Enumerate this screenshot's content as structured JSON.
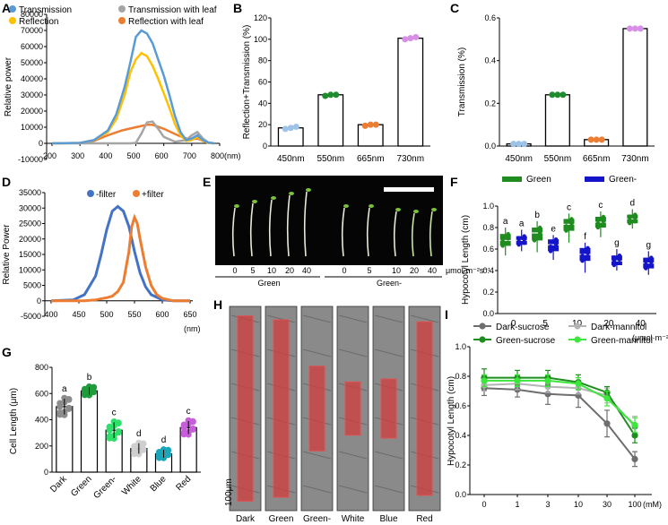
{
  "panel_labels": {
    "a": "A",
    "b": "B",
    "c": "C",
    "d": "D",
    "e": "E",
    "f": "F",
    "g": "G",
    "h": "H",
    "i": "I"
  },
  "colors": {
    "transmission": "#5b9bd5",
    "transmission_leaf": "#a5a5a5",
    "reflection": "#ffc000",
    "reflection_leaf": "#ed7d31",
    "blue_pt": "#9dc3e6",
    "green_pt": "#1e8c2e",
    "orange_pt": "#ed7d31",
    "violet_pt": "#d78ee6",
    "minus_filter": "#4472c4",
    "plus_filter": "#ed7d31",
    "green_box": "#1e8c1e",
    "blue_box": "#1414c8",
    "g_dark": "#8c8c8c",
    "g_green": "#1e9c3c",
    "g_greenminus": "#2ee06a",
    "g_white": "#cfcfcf",
    "g_blue": "#1aa6b8",
    "g_red": "#c65ed9",
    "i_dark_sucrose": "#6e6e6e",
    "i_dark_mannitol": "#b4b4b4",
    "i_green_sucrose": "#1e8c1e",
    "i_green_mannitol": "#3ce63c"
  },
  "chart_data": [
    {
      "panel": "A",
      "type": "line",
      "ylabel": "Relative power",
      "xlabel_unit": "(nm)",
      "xlim": [
        200,
        800
      ],
      "ylim": [
        -10000,
        80000
      ],
      "x_ticks": [
        "200",
        "300",
        "400",
        "500",
        "600",
        "700",
        "800"
      ],
      "y_ticks": [
        "-10000",
        "0",
        "10000",
        "20000",
        "30000",
        "40000",
        "50000",
        "60000",
        "70000",
        "80000"
      ],
      "legend": [
        "Transmission",
        "Transmission with leaf",
        "Reflection",
        "Reflection with leaf"
      ],
      "series": [
        {
          "name": "Transmission",
          "x": [
            200,
            300,
            350,
            400,
            430,
            460,
            480,
            500,
            520,
            540,
            560,
            580,
            600,
            620,
            640,
            660,
            680,
            700,
            720,
            740,
            760,
            780
          ],
          "y": [
            0,
            300,
            2000,
            8000,
            18000,
            35000,
            50000,
            66000,
            70000,
            68000,
            62000,
            52000,
            42000,
            30000,
            17000,
            7000,
            2000,
            3000,
            5000,
            2000,
            500,
            0
          ]
        },
        {
          "name": "Transmission with leaf",
          "x": [
            200,
            400,
            480,
            500,
            520,
            540,
            560,
            580,
            600,
            640,
            680,
            700,
            720,
            740,
            760,
            780
          ],
          "y": [
            0,
            0,
            0,
            300,
            6000,
            13000,
            13500,
            9000,
            4000,
            1000,
            2000,
            5000,
            7000,
            3000,
            500,
            0
          ]
        },
        {
          "name": "Reflection",
          "x": [
            200,
            300,
            350,
            400,
            430,
            460,
            480,
            500,
            520,
            540,
            560,
            580,
            600,
            620,
            640,
            660,
            680,
            700,
            720,
            740,
            760,
            780
          ],
          "y": [
            0,
            300,
            2000,
            7000,
            15000,
            30000,
            44000,
            52000,
            56000,
            54000,
            48000,
            40000,
            31000,
            22000,
            12000,
            5000,
            1500,
            2000,
            4000,
            1500,
            300,
            0
          ]
        },
        {
          "name": "Reflection with leaf",
          "x": [
            200,
            300,
            350,
            400,
            450,
            500,
            540,
            560,
            600,
            650,
            680,
            700,
            720,
            740,
            760,
            780
          ],
          "y": [
            0,
            200,
            1500,
            5000,
            8000,
            10000,
            11500,
            11500,
            9000,
            5000,
            3000,
            2500,
            3000,
            1500,
            300,
            0
          ]
        }
      ]
    },
    {
      "panel": "B",
      "type": "bar",
      "ylabel": "Reflection+Transmission (%)",
      "categories": [
        "450nm",
        "550nm",
        "665nm",
        "730nm"
      ],
      "values": [
        17,
        48,
        20,
        101
      ],
      "points": [
        [
          16,
          17,
          18
        ],
        [
          47,
          48,
          48
        ],
        [
          19,
          20,
          20
        ],
        [
          100,
          101,
          102
        ]
      ],
      "ylim": [
        0,
        120
      ],
      "y_ticks": [
        "0",
        "20",
        "40",
        "60",
        "80",
        "100",
        "120"
      ]
    },
    {
      "panel": "C",
      "type": "bar",
      "ylabel": "Transmission (%)",
      "categories": [
        "450nm",
        "550nm",
        "665nm",
        "730nm"
      ],
      "values": [
        0.01,
        0.24,
        0.03,
        0.55
      ],
      "points": [
        [
          0.01,
          0.01,
          0.01
        ],
        [
          0.24,
          0.24,
          0.24
        ],
        [
          0.03,
          0.03,
          0.03
        ],
        [
          0.55,
          0.55,
          0.55
        ]
      ],
      "ylim": [
        0,
        0.6
      ],
      "y_ticks": [
        "0.0",
        "0.2",
        "0.4",
        "0.6"
      ]
    },
    {
      "panel": "D",
      "type": "line",
      "ylabel": "Relative Power",
      "xlabel_unit": "(nm)",
      "xlim": [
        400,
        650
      ],
      "ylim": [
        -5000,
        35000
      ],
      "x_ticks": [
        "400",
        "450",
        "500",
        "550",
        "600",
        "650"
      ],
      "y_ticks": [
        "-5000",
        "0",
        "5000",
        "10000",
        "15000",
        "20000",
        "25000",
        "30000",
        "35000"
      ],
      "legend": [
        "-filter",
        "+filter"
      ],
      "series": [
        {
          "name": "-filter",
          "x": [
            400,
            440,
            460,
            480,
            490,
            500,
            510,
            520,
            530,
            540,
            550,
            560,
            570,
            580,
            600,
            620,
            650
          ],
          "y": [
            0,
            300,
            2000,
            8000,
            15000,
            23000,
            29000,
            30500,
            29000,
            24000,
            16000,
            9000,
            4500,
            2000,
            300,
            0,
            0
          ]
        },
        {
          "name": "+filter",
          "x": [
            400,
            460,
            480,
            500,
            510,
            520,
            530,
            540,
            545,
            550,
            555,
            560,
            570,
            580,
            590,
            600,
            620,
            650
          ],
          "y": [
            0,
            0,
            300,
            1000,
            1500,
            3000,
            6000,
            16000,
            24000,
            27000,
            25000,
            20000,
            11000,
            5000,
            2000,
            800,
            0,
            0
          ]
        }
      ]
    },
    {
      "panel": "F",
      "type": "box",
      "ylabel": "Hypocotyl Length (cm)",
      "xlabel_unit": "(μmol·m⁻²s⁻¹)",
      "legend": [
        "Green",
        "Green-"
      ],
      "categories": [
        "0",
        "5",
        "10",
        "20",
        "40"
      ],
      "ylim": [
        0,
        1.0
      ],
      "y_ticks": [
        "0.0",
        "0.2",
        "0.4",
        "0.6",
        "0.8",
        "1.0"
      ],
      "series": [
        {
          "name": "Green",
          "median": [
            0.68,
            0.75,
            0.83,
            0.85,
            0.88
          ],
          "q1": [
            0.63,
            0.68,
            0.77,
            0.8,
            0.84
          ],
          "q3": [
            0.74,
            0.8,
            0.88,
            0.9,
            0.92
          ],
          "min": [
            0.54,
            0.57,
            0.66,
            0.71,
            0.79
          ],
          "max": [
            0.8,
            0.86,
            0.93,
            0.95,
            0.97
          ],
          "letters": [
            "a",
            "b",
            "c",
            "c",
            "d"
          ]
        },
        {
          "name": "Green-",
          "median": [
            0.68,
            0.64,
            0.55,
            0.49,
            0.47
          ],
          "q1": [
            0.64,
            0.58,
            0.49,
            0.45,
            0.42
          ],
          "q3": [
            0.72,
            0.69,
            0.61,
            0.54,
            0.52
          ],
          "min": [
            0.58,
            0.5,
            0.38,
            0.4,
            0.36
          ],
          "max": [
            0.78,
            0.73,
            0.66,
            0.6,
            0.58
          ],
          "letters": [
            "a",
            "e",
            "f",
            "g",
            "g"
          ]
        }
      ]
    },
    {
      "panel": "G",
      "type": "bar",
      "ylabel": "Cell Length (μm)",
      "categories": [
        "Dark",
        "Green",
        "Green-",
        "White",
        "Blue",
        "Red"
      ],
      "values": [
        500,
        620,
        320,
        180,
        140,
        340
      ],
      "errors": [
        60,
        30,
        60,
        40,
        30,
        50
      ],
      "letters": [
        "a",
        "b",
        "c",
        "d",
        "d",
        "c"
      ],
      "ylim": [
        0,
        800
      ],
      "y_ticks": [
        "0",
        "200",
        "400",
        "600",
        "800"
      ]
    },
    {
      "panel": "I",
      "type": "line",
      "ylabel": "Hypocotyl Length (cm)",
      "xlabel_unit": "(mM)",
      "categories": [
        "0",
        "1",
        "3",
        "10",
        "30",
        "100"
      ],
      "ylim": [
        0,
        1.0
      ],
      "y_ticks": [
        "0.0",
        "0.2",
        "0.4",
        "0.6",
        "0.8",
        "1.0"
      ],
      "series": [
        {
          "name": "Dark-sucrose",
          "values": [
            0.72,
            0.71,
            0.68,
            0.67,
            0.48,
            0.24
          ],
          "errors": [
            0.05,
            0.05,
            0.07,
            0.08,
            0.09,
            0.05
          ]
        },
        {
          "name": "Dark-mannitol",
          "values": [
            0.74,
            0.75,
            0.73,
            0.72,
            0.67,
            0.46
          ],
          "errors": [
            0.04,
            0.04,
            0.04,
            0.04,
            0.05,
            0.07
          ]
        },
        {
          "name": "Green-sucrose",
          "values": [
            0.79,
            0.79,
            0.79,
            0.76,
            0.69,
            0.4
          ],
          "errors": [
            0.06,
            0.05,
            0.05,
            0.05,
            0.04,
            0.05
          ]
        },
        {
          "name": "Green-mannitol",
          "values": [
            0.77,
            0.77,
            0.77,
            0.75,
            0.65,
            0.47
          ],
          "errors": [
            0.04,
            0.04,
            0.04,
            0.04,
            0.05,
            0.05
          ]
        }
      ]
    }
  ],
  "panel_e": {
    "group_labels": [
      "Green",
      "Green-"
    ],
    "dose_labels_green": [
      "0",
      "5",
      "10",
      "20",
      "40"
    ],
    "dose_labels_greenminus": [
      "0",
      "5",
      "10",
      "20",
      "40"
    ],
    "unit": "μmol·m⁻²s⁻¹"
  },
  "panel_h": {
    "labels": [
      "Dark",
      "Green",
      "Green-",
      "White",
      "Blue",
      "Red"
    ],
    "scale_label": "100μm",
    "cell_heights": [
      0.94,
      0.9,
      0.43,
      0.27,
      0.3,
      0.88
    ]
  }
}
